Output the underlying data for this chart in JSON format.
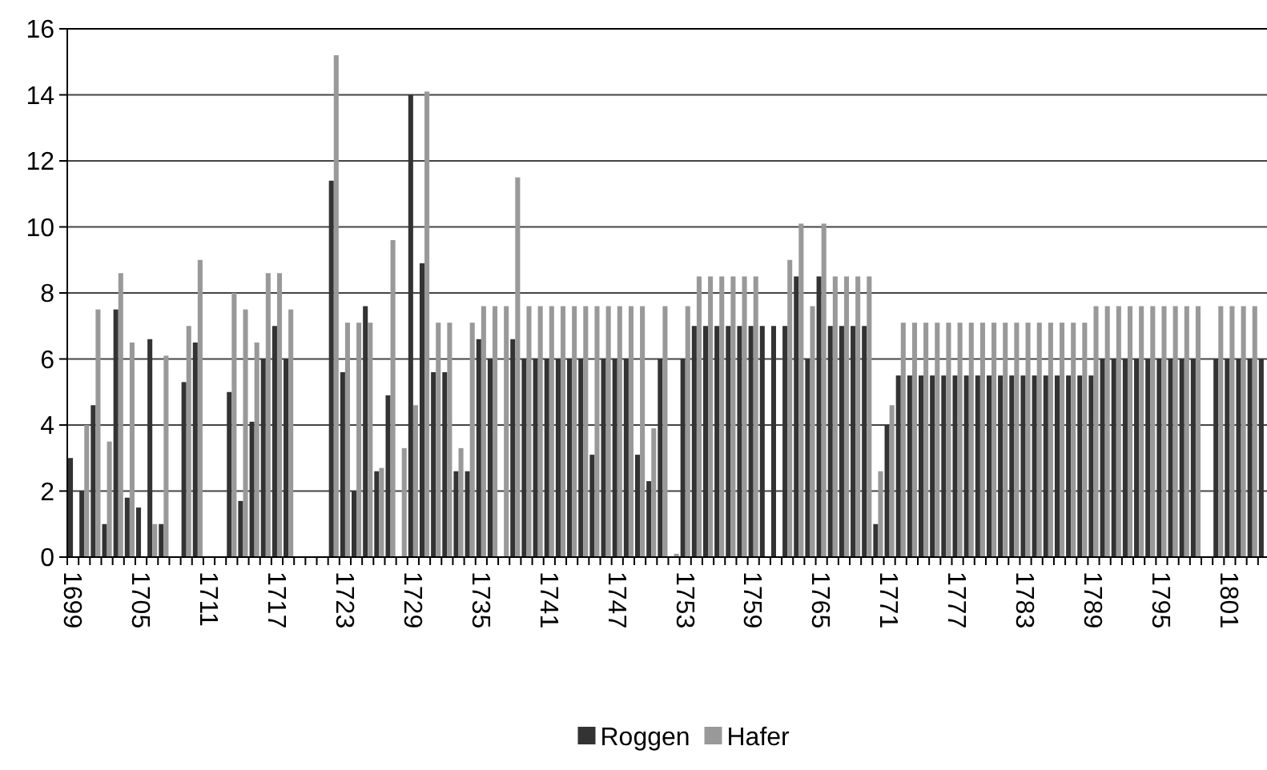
{
  "chart_data": {
    "type": "bar",
    "categories": [
      "1699",
      null,
      null,
      null,
      null,
      null,
      "1705",
      null,
      null,
      null,
      null,
      null,
      "1711",
      null,
      null,
      null,
      null,
      null,
      "1717",
      null,
      null,
      null,
      null,
      null,
      "1723",
      null,
      null,
      null,
      null,
      null,
      "1729",
      null,
      null,
      null,
      null,
      null,
      "1735",
      null,
      null,
      null,
      null,
      null,
      "1741",
      null,
      null,
      null,
      null,
      null,
      "1747",
      null,
      null,
      null,
      null,
      null,
      "1753",
      null,
      null,
      null,
      null,
      null,
      "1759",
      null,
      null,
      null,
      null,
      null,
      "1765",
      null,
      null,
      null,
      null,
      null,
      "1771",
      null,
      null,
      null,
      null,
      null,
      "1777",
      null,
      null,
      null,
      null,
      null,
      "1783",
      null,
      null,
      null,
      null,
      null,
      "1789",
      null,
      null,
      null,
      null,
      null,
      "1795",
      null,
      null,
      null,
      null,
      null,
      "1801",
      null,
      null,
      null
    ],
    "series": [
      {
        "name": "Roggen",
        "color": "#333333",
        "values": [
          3,
          2,
          4.6,
          1,
          7.5,
          1.8,
          1.5,
          6.6,
          1,
          null,
          5.3,
          6.5,
          null,
          null,
          5,
          1.7,
          4.1,
          6,
          7,
          6,
          null,
          null,
          null,
          11.4,
          5.6,
          2,
          7.6,
          2.6,
          4.9,
          null,
          14,
          8.9,
          5.6,
          5.6,
          2.6,
          2.6,
          6.6,
          6,
          null,
          6.6,
          6,
          6,
          6,
          6,
          6,
          6,
          3.1,
          6,
          6,
          6,
          3.1,
          2.3,
          6,
          null,
          6,
          7,
          7,
          7,
          7,
          7,
          7,
          7,
          7,
          7,
          8.5,
          6,
          8.5,
          7,
          7,
          7,
          7,
          1,
          4,
          5.5,
          5.5,
          5.5,
          5.5,
          5.5,
          5.5,
          5.5,
          5.5,
          5.5,
          5.5,
          5.5,
          5.5,
          5.5,
          5.5,
          5.5,
          5.5,
          5.5,
          5.5,
          6,
          6,
          6,
          6,
          6,
          6,
          6,
          6,
          6,
          null,
          6,
          6,
          6,
          6,
          6
        ]
      },
      {
        "name": "Hafer",
        "color": "#999999",
        "values": [
          null,
          4,
          7.5,
          3.5,
          8.6,
          6.5,
          null,
          1,
          6.1,
          null,
          7,
          9,
          null,
          null,
          8,
          7.5,
          6.5,
          8.6,
          8.6,
          7.5,
          null,
          null,
          null,
          15.2,
          7.1,
          7.1,
          7.1,
          2.7,
          9.6,
          3.3,
          4.6,
          14.1,
          7.1,
          7.1,
          3.3,
          7.1,
          7.6,
          7.6,
          7.6,
          11.5,
          7.6,
          7.6,
          7.6,
          7.6,
          7.6,
          7.6,
          7.6,
          7.6,
          7.6,
          7.6,
          7.6,
          3.9,
          7.6,
          0.1,
          7.6,
          8.5,
          8.5,
          8.5,
          8.5,
          8.5,
          8.5,
          null,
          null,
          9,
          10.1,
          7.6,
          10.1,
          8.5,
          8.5,
          8.5,
          8.5,
          2.6,
          4.6,
          7.1,
          7.1,
          7.1,
          7.1,
          7.1,
          7.1,
          7.1,
          7.1,
          7.1,
          7.1,
          7.1,
          7.1,
          7.1,
          7.1,
          7.1,
          7.1,
          7.1,
          7.6,
          7.6,
          7.6,
          7.6,
          7.6,
          7.6,
          7.6,
          7.6,
          7.6,
          7.6,
          null,
          7.6,
          7.6,
          7.6,
          7.6,
          null
        ]
      }
    ],
    "ylim": [
      0,
      16
    ],
    "yticks": [
      0,
      2,
      4,
      6,
      8,
      10,
      12,
      14,
      16
    ],
    "grid": "y",
    "legend": "bottom"
  }
}
